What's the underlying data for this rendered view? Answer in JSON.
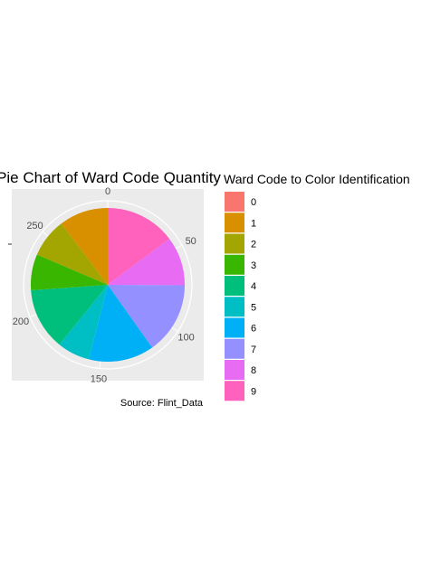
{
  "chart_data": {
    "type": "pie",
    "title": "Pie Chart of Ward Code Quantity",
    "caption": "Source: Flint_Data",
    "legend_title": "Ward Code to Color Identification",
    "legend_position": "right",
    "theta_range": [
      0,
      291
    ],
    "theta_ticks": [
      "0",
      "50",
      "100",
      "150",
      "200",
      "250"
    ],
    "theta_tick_values": [
      0,
      50,
      100,
      150,
      200,
      250
    ],
    "y_tick_label": "",
    "grid": true,
    "categories": [
      "0",
      "1",
      "2",
      "3",
      "4",
      "5",
      "6",
      "7",
      "8",
      "9"
    ],
    "values": [
      0,
      30,
      24,
      22,
      38,
      20,
      40,
      44,
      30,
      43
    ],
    "colors": [
      "#F8766D",
      "#D89000",
      "#A3A500",
      "#39B600",
      "#00BF7D",
      "#00BFC4",
      "#00B0F6",
      "#9590FF",
      "#E76BF3",
      "#FF62BC"
    ]
  }
}
